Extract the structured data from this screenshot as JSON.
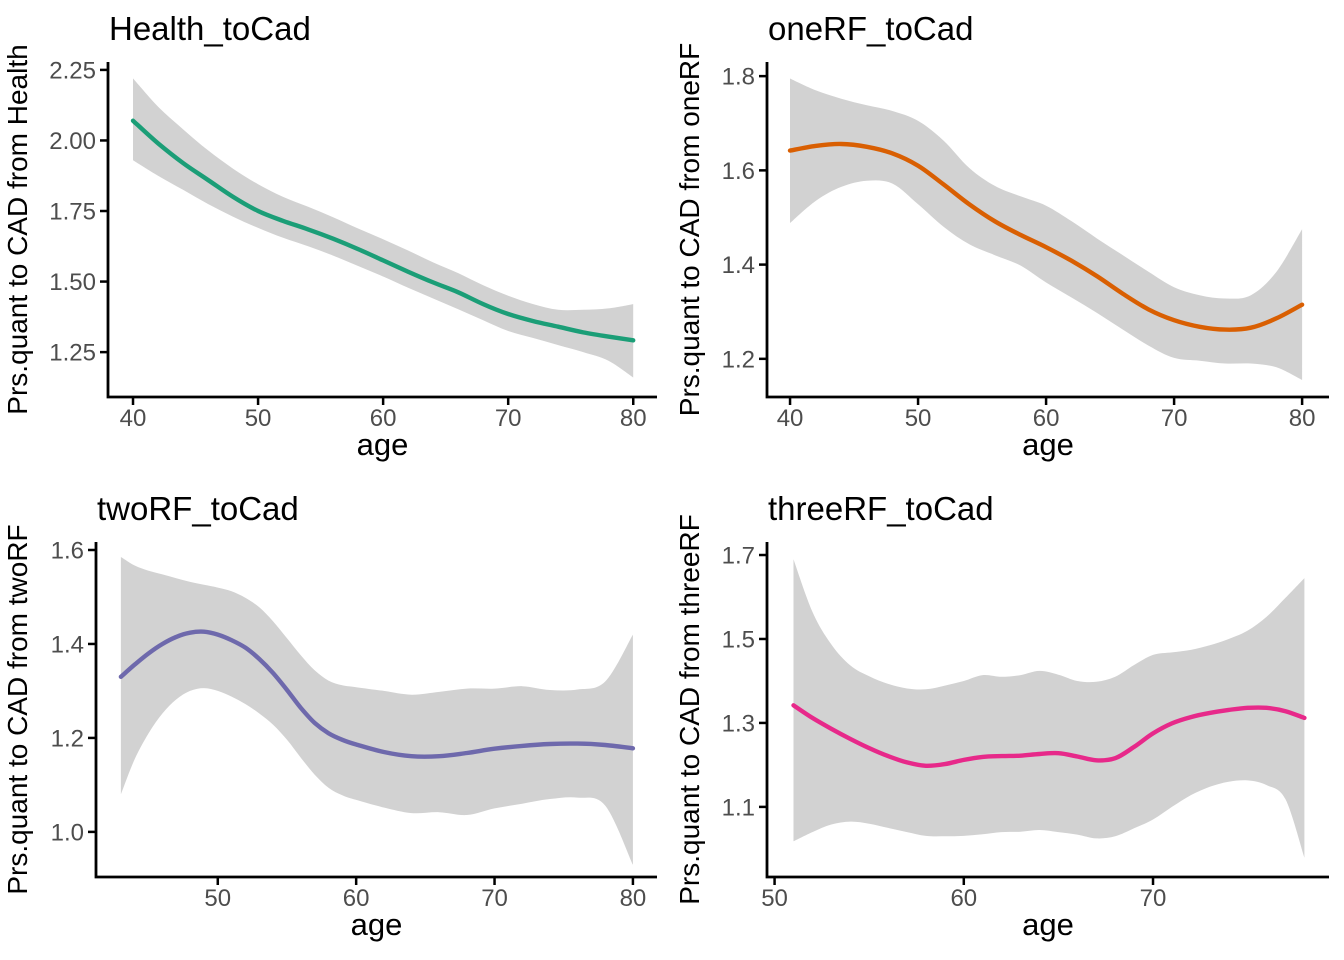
{
  "page": {
    "background": "#FFFFFF"
  },
  "style": {
    "band_color": "#D2D2D2",
    "axis_color": "#000000",
    "tick_color": "#000000",
    "tick_label_color": "#4D4D4D",
    "title_color": "#000000"
  },
  "chart_data": [
    {
      "type": "line",
      "panel": "top-left",
      "title": "Health_toCad",
      "xlabel": "age",
      "ylabel": "Prs.quant to CAD from Health",
      "line_color": "#1B9E77",
      "legend": "none",
      "grid": false,
      "x_ticks": [
        40,
        50,
        60,
        70,
        80
      ],
      "x_tick_labels": [
        "40",
        "50",
        "60",
        "70",
        "80"
      ],
      "y_ticks": [
        1.25,
        1.5,
        1.75,
        2.0,
        2.25
      ],
      "y_tick_labels": [
        "1.25",
        "1.50",
        "1.75",
        "2.00",
        "2.25"
      ],
      "x_domain": [
        38.0,
        81.9
      ],
      "y_domain": [
        1.091,
        2.278
      ],
      "x": [
        40,
        42,
        44,
        46,
        48,
        50,
        52,
        54,
        56,
        58,
        60,
        62,
        64,
        66,
        68,
        70,
        72,
        74,
        76,
        78,
        80
      ],
      "y": [
        2.07,
        1.99,
        1.92,
        1.86,
        1.8,
        1.75,
        1.715,
        1.685,
        1.652,
        1.615,
        1.575,
        1.535,
        1.497,
        1.462,
        1.42,
        1.385,
        1.36,
        1.34,
        1.32,
        1.305,
        1.292
      ],
      "ci_upper": [
        2.22,
        2.12,
        2.04,
        1.965,
        1.9,
        1.845,
        1.8,
        1.765,
        1.728,
        1.688,
        1.65,
        1.61,
        1.568,
        1.53,
        1.487,
        1.45,
        1.42,
        1.4,
        1.4,
        1.405,
        1.42
      ],
      "ci_lower": [
        1.93,
        1.875,
        1.825,
        1.775,
        1.73,
        1.69,
        1.655,
        1.625,
        1.592,
        1.555,
        1.518,
        1.478,
        1.44,
        1.402,
        1.363,
        1.325,
        1.3,
        1.275,
        1.25,
        1.22,
        1.16
      ]
    },
    {
      "type": "line",
      "panel": "top-right",
      "title": "oneRF_toCad",
      "xlabel": "age",
      "ylabel": "Prs.quant to CAD from oneRF",
      "line_color": "#D95F02",
      "legend": "none",
      "grid": false,
      "x_ticks": [
        40,
        50,
        60,
        70,
        80
      ],
      "x_tick_labels": [
        "40",
        "50",
        "60",
        "70",
        "80"
      ],
      "y_ticks": [
        1.2,
        1.4,
        1.6,
        1.8
      ],
      "y_tick_labels": [
        "1.2",
        "1.4",
        "1.6",
        "1.8"
      ],
      "x_domain": [
        38.2,
        82.1
      ],
      "y_domain": [
        1.119,
        1.83
      ],
      "x": [
        40,
        42,
        44,
        46,
        48,
        50,
        52,
        54,
        56,
        58,
        60,
        62,
        64,
        66,
        68,
        70,
        72,
        74,
        76,
        78,
        80
      ],
      "y": [
        1.642,
        1.652,
        1.656,
        1.65,
        1.636,
        1.61,
        1.57,
        1.528,
        1.492,
        1.463,
        1.437,
        1.408,
        1.375,
        1.338,
        1.305,
        1.282,
        1.268,
        1.262,
        1.266,
        1.286,
        1.315
      ],
      "ci_upper": [
        1.795,
        1.77,
        1.752,
        1.738,
        1.726,
        1.705,
        1.663,
        1.605,
        1.567,
        1.545,
        1.525,
        1.492,
        1.455,
        1.42,
        1.385,
        1.352,
        1.335,
        1.328,
        1.335,
        1.385,
        1.475
      ],
      "ci_lower": [
        1.488,
        1.535,
        1.565,
        1.578,
        1.572,
        1.528,
        1.48,
        1.443,
        1.42,
        1.398,
        1.362,
        1.33,
        1.297,
        1.262,
        1.228,
        1.202,
        1.196,
        1.19,
        1.19,
        1.182,
        1.155
      ]
    },
    {
      "type": "line",
      "panel": "bottom-left",
      "title": "twoRF_toCad",
      "xlabel": "age",
      "ylabel": "Prs.quant to CAD from twoRF",
      "line_color": "#6E69AC",
      "legend": "none",
      "grid": false,
      "x_ticks": [
        50,
        60,
        70,
        80
      ],
      "x_tick_labels": [
        "50",
        "60",
        "70",
        "80"
      ],
      "y_ticks": [
        1.0,
        1.2,
        1.4,
        1.6
      ],
      "y_tick_labels": [
        "1.0",
        "1.2",
        "1.4",
        "1.6"
      ],
      "x_domain": [
        41.2,
        81.74
      ],
      "y_domain": [
        0.904,
        1.617
      ],
      "x": [
        43,
        44,
        45,
        46,
        47,
        48,
        49,
        50,
        51,
        52,
        53,
        54,
        55,
        56,
        57,
        58,
        59,
        60,
        62,
        64,
        66,
        68,
        70,
        72,
        74,
        76,
        78,
        80
      ],
      "y": [
        1.33,
        1.356,
        1.38,
        1.4,
        1.415,
        1.424,
        1.426,
        1.42,
        1.408,
        1.392,
        1.368,
        1.338,
        1.302,
        1.264,
        1.232,
        1.21,
        1.196,
        1.186,
        1.17,
        1.161,
        1.161,
        1.168,
        1.177,
        1.183,
        1.187,
        1.188,
        1.185,
        1.178
      ],
      "ci_upper": [
        1.585,
        1.567,
        1.556,
        1.548,
        1.54,
        1.532,
        1.526,
        1.52,
        1.512,
        1.498,
        1.478,
        1.448,
        1.412,
        1.376,
        1.344,
        1.322,
        1.312,
        1.308,
        1.3,
        1.292,
        1.298,
        1.305,
        1.305,
        1.31,
        1.302,
        1.303,
        1.32,
        1.42
      ],
      "ci_lower": [
        1.08,
        1.155,
        1.21,
        1.252,
        1.282,
        1.3,
        1.306,
        1.3,
        1.288,
        1.272,
        1.252,
        1.228,
        1.196,
        1.158,
        1.122,
        1.094,
        1.078,
        1.068,
        1.052,
        1.04,
        1.042,
        1.036,
        1.05,
        1.06,
        1.07,
        1.073,
        1.056,
        0.93
      ]
    },
    {
      "type": "line",
      "panel": "bottom-right",
      "title": "threeRF_toCad",
      "xlabel": "age",
      "ylabel": "Prs.quant to CAD from threeRF",
      "line_color": "#E7298A",
      "legend": "none",
      "grid": false,
      "x_ticks": [
        50,
        60,
        70
      ],
      "x_tick_labels": [
        "50",
        "60",
        "70"
      ],
      "y_ticks": [
        1.1,
        1.3,
        1.5,
        1.7
      ],
      "y_tick_labels": [
        "1.1",
        "1.3",
        "1.5",
        "1.7"
      ],
      "x_domain": [
        49.6,
        79.3
      ],
      "y_domain": [
        0.933,
        1.731
      ],
      "x": [
        51,
        52,
        53,
        54,
        55,
        56,
        57,
        58,
        59,
        60,
        61,
        62,
        63,
        64,
        65,
        66,
        67,
        68,
        69,
        70,
        71,
        72,
        73,
        74,
        75,
        76,
        77,
        78
      ],
      "y": [
        1.342,
        1.312,
        1.286,
        1.262,
        1.24,
        1.221,
        1.206,
        1.198,
        1.202,
        1.212,
        1.219,
        1.221,
        1.222,
        1.226,
        1.228,
        1.22,
        1.211,
        1.216,
        1.243,
        1.275,
        1.299,
        1.314,
        1.324,
        1.331,
        1.336,
        1.336,
        1.328,
        1.312
      ],
      "ci_upper": [
        1.69,
        1.565,
        1.487,
        1.437,
        1.411,
        1.393,
        1.382,
        1.38,
        1.389,
        1.4,
        1.414,
        1.41,
        1.414,
        1.424,
        1.415,
        1.4,
        1.398,
        1.41,
        1.438,
        1.462,
        1.468,
        1.474,
        1.485,
        1.5,
        1.52,
        1.553,
        1.598,
        1.645
      ],
      "ci_lower": [
        1.018,
        1.04,
        1.058,
        1.065,
        1.06,
        1.05,
        1.04,
        1.031,
        1.03,
        1.031,
        1.035,
        1.04,
        1.041,
        1.045,
        1.04,
        1.034,
        1.025,
        1.03,
        1.049,
        1.07,
        1.1,
        1.128,
        1.148,
        1.16,
        1.163,
        1.152,
        1.118,
        0.979
      ]
    }
  ]
}
